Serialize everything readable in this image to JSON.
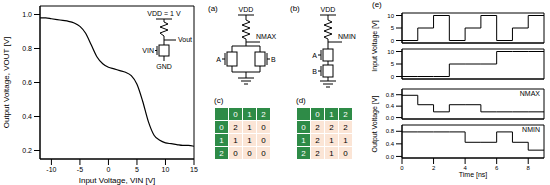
{
  "chart_data": [
    {
      "type": "line",
      "x_label": "Input Voltage, VIN [V]",
      "y_label": "Output Voltage, VOUT [V]",
      "x": [
        -12,
        -11,
        -10,
        -9,
        -8,
        -7,
        -6,
        -5,
        -4,
        -3,
        -2,
        -1,
        0,
        1,
        2,
        3,
        4,
        5,
        6,
        7,
        8,
        9,
        10,
        11,
        12,
        13,
        14,
        15
      ],
      "values": [
        0.98,
        0.98,
        0.975,
        0.97,
        0.965,
        0.96,
        0.95,
        0.93,
        0.89,
        0.82,
        0.75,
        0.71,
        0.69,
        0.68,
        0.67,
        0.66,
        0.64,
        0.59,
        0.49,
        0.37,
        0.29,
        0.26,
        0.245,
        0.24,
        0.235,
        0.23,
        0.23,
        0.225
      ],
      "color": "#000000",
      "xlim": [
        -12,
        15
      ],
      "xticks": [
        -10,
        -5,
        0,
        5,
        10,
        15
      ],
      "ylim": [
        0.15,
        1.05
      ],
      "yticks": [
        0.2,
        0.4,
        0.6,
        0.8,
        {
          "value": 1,
          "label": "1.0"
        }
      ],
      "inset": {
        "vdd": "VDD = 1 V",
        "vout": "Vout",
        "vin": "VIN",
        "gnd": "GND"
      }
    },
    {
      "type": "line",
      "label": "(e)",
      "input_label": "Input Voltage [V]",
      "output_label": "Output Voltage [V]",
      "x_label": "Time [ns]",
      "x": [
        0,
        1,
        2,
        3,
        4,
        5,
        6,
        7,
        8,
        9
      ],
      "xlim": [
        0,
        9
      ],
      "xticks": [
        0,
        2,
        4,
        6,
        8
      ],
      "line_style": "step",
      "color": "#000000",
      "panels": [
        {
          "values": [
            0,
            5,
            10,
            0,
            5,
            10,
            0,
            5,
            10,
            10
          ],
          "ylim": [
            -1,
            11
          ],
          "yticks": [
            0,
            5,
            10
          ]
        },
        {
          "values": [
            0,
            0,
            0,
            5,
            5,
            5,
            10,
            10,
            10,
            10
          ],
          "ylim": [
            -1,
            11
          ],
          "yticks": [
            0,
            5,
            10
          ]
        },
        {
          "label": "NMAX",
          "values": [
            0.78,
            0.45,
            0.2,
            0.45,
            0.45,
            0.2,
            0.2,
            0.2,
            0.2,
            0.2
          ],
          "ylim": [
            -0.05,
            1
          ],
          "yticks": [
            {
              "value": 0,
              "label": "0.0"
            },
            0.4,
            0.8
          ]
        },
        {
          "label": "NMIN",
          "values": [
            0.78,
            0.78,
            0.78,
            0.78,
            0.45,
            0.45,
            0.78,
            0.45,
            0.2,
            0.2
          ],
          "ylim": [
            -0.05,
            1
          ],
          "yticks": [
            {
              "value": 0,
              "label": "0.0"
            },
            0.4,
            0.8
          ]
        }
      ]
    }
  ],
  "circuits": [
    {
      "label": "(a)",
      "supply": "VDD",
      "output": "NMAX",
      "inputs": [
        "A",
        "B"
      ]
    },
    {
      "label": "(b)",
      "supply": "VDD",
      "output": "NMIN",
      "inputs": [
        "A",
        "B"
      ]
    }
  ],
  "tables": [
    {
      "label": "(c)",
      "header": [
        0,
        1,
        2
      ],
      "rows": [
        [
          0,
          2,
          1,
          0
        ],
        [
          1,
          1,
          1,
          0
        ],
        [
          2,
          0,
          0,
          0
        ]
      ]
    },
    {
      "label": "(d)",
      "header": [
        0,
        1,
        2
      ],
      "rows": [
        [
          0,
          2,
          2,
          2
        ],
        [
          1,
          2,
          1,
          1
        ],
        [
          2,
          2,
          1,
          0
        ]
      ]
    }
  ]
}
